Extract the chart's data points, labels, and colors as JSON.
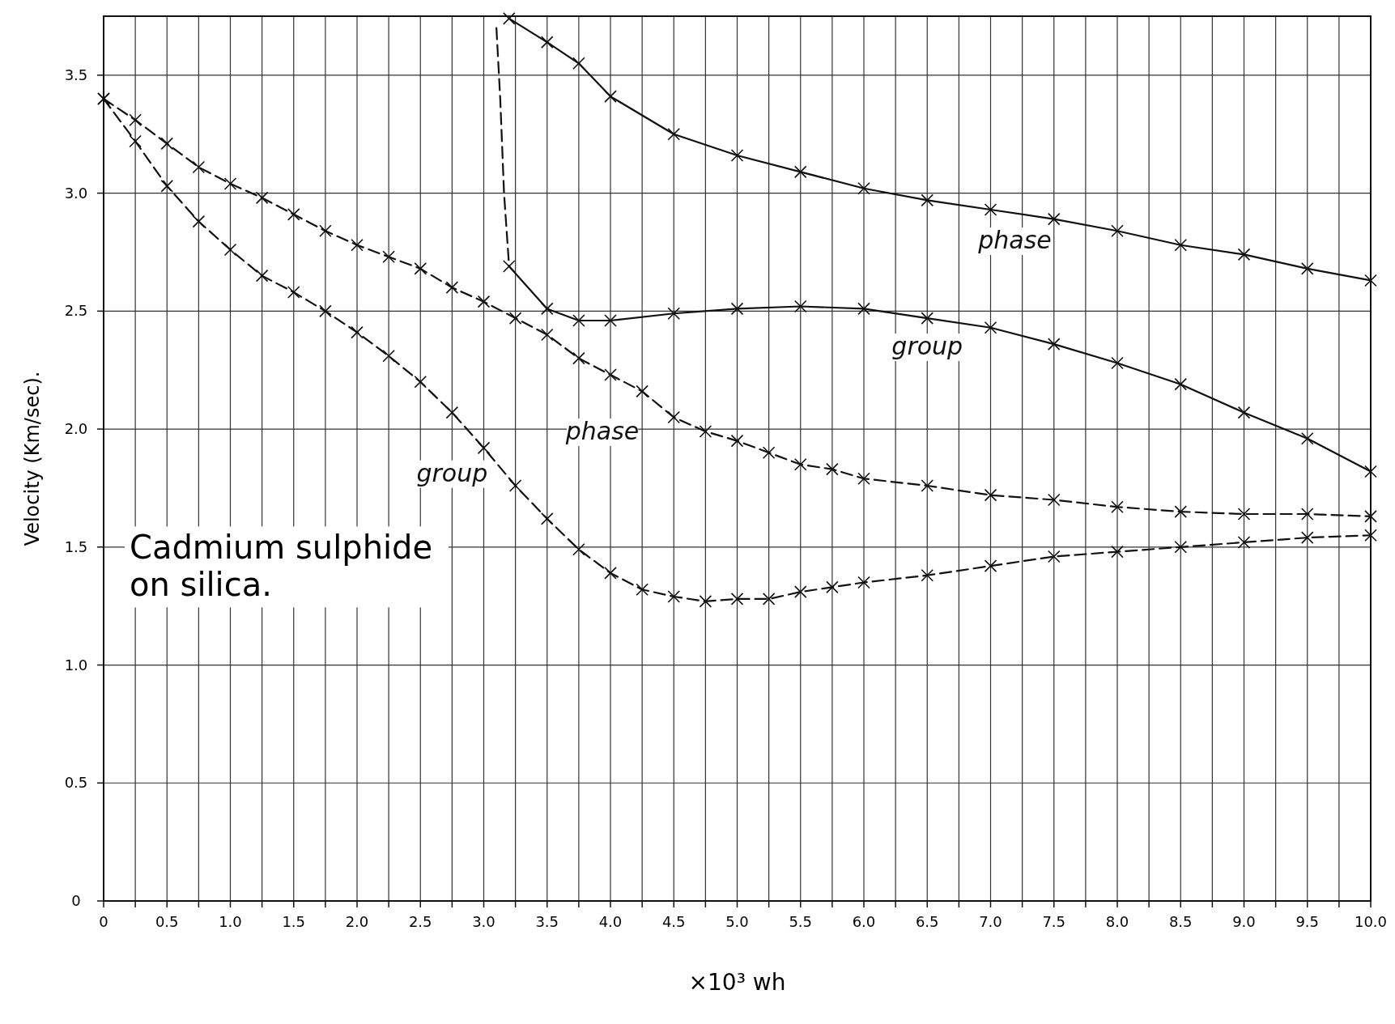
{
  "chart_data": {
    "type": "line",
    "xlabel": "×10³ wh",
    "ylabel": "Velocity (Km/sec).",
    "xlim": [
      0,
      10
    ],
    "ylim": [
      0,
      3.75
    ],
    "xticks": [
      0,
      {
        "value": 0.25,
        "label": null
      },
      0.5,
      {
        "value": 0.75,
        "label": null
      },
      {
        "value": 1,
        "label": "1.0"
      },
      {
        "value": 1.25,
        "label": null
      },
      1.5,
      {
        "value": 1.75,
        "label": null
      },
      {
        "value": 2,
        "label": "2.0"
      },
      {
        "value": 2.25,
        "label": null
      },
      2.5,
      {
        "value": 2.75,
        "label": null
      },
      {
        "value": 3,
        "label": "3.0"
      },
      {
        "value": 3.25,
        "label": null
      },
      3.5,
      {
        "value": 3.75,
        "label": null
      },
      {
        "value": 4,
        "label": "4.0"
      },
      {
        "value": 4.25,
        "label": null
      },
      4.5,
      {
        "value": 4.75,
        "label": null
      },
      {
        "value": 5,
        "label": "5.0"
      },
      {
        "value": 5.25,
        "label": null
      },
      5.5,
      {
        "value": 5.75,
        "label": null
      },
      {
        "value": 6,
        "label": "6.0"
      },
      {
        "value": 6.25,
        "label": null
      },
      6.5,
      {
        "value": 6.75,
        "label": null
      },
      {
        "value": 7,
        "label": "7.0"
      },
      {
        "value": 7.25,
        "label": null
      },
      7.5,
      {
        "value": 7.75,
        "label": null
      },
      {
        "value": 8,
        "label": "8.0"
      },
      {
        "value": 8.25,
        "label": null
      },
      8.5,
      {
        "value": 8.75,
        "label": null
      },
      {
        "value": 9,
        "label": "9.0"
      },
      {
        "value": 9.25,
        "label": null
      },
      9.5,
      {
        "value": 9.75,
        "label": null
      },
      {
        "value": 10,
        "label": "10.0"
      }
    ],
    "yticks": [
      0,
      0.5,
      {
        "value": 1,
        "label": "1.0"
      },
      1.5,
      {
        "value": 2,
        "label": "2.0"
      },
      2.5,
      {
        "value": 3,
        "label": "3.0"
      },
      3.5
    ],
    "grid": true,
    "marker": "cross",
    "series": [
      {
        "name": "phase",
        "color": "#111111",
        "line_style": "solid",
        "x": [
          3.2,
          3.5,
          3.75,
          4,
          4.5,
          5,
          5.5,
          6,
          6.5,
          7,
          7.5,
          8,
          8.5,
          9,
          9.5,
          10
        ],
        "values": [
          3.74,
          3.64,
          3.55,
          3.41,
          3.25,
          3.16,
          3.09,
          3.02,
          2.97,
          2.93,
          2.89,
          2.84,
          2.78,
          2.74,
          2.68,
          2.63
        ]
      },
      {
        "color": "#111111",
        "line_style": "dashed",
        "marker": "none",
        "x": [
          3.1,
          3.13,
          3.16,
          3.2
        ],
        "values": [
          3.7,
          3.4,
          3.0,
          2.69
        ]
      },
      {
        "name": "group",
        "color": "#111111",
        "line_style": "solid",
        "x": [
          3.2,
          3.5,
          3.75,
          4,
          4.5,
          5,
          5.5,
          6,
          6.5,
          7,
          7.5,
          8,
          8.5,
          9,
          9.5,
          10
        ],
        "values": [
          2.69,
          2.51,
          2.46,
          2.46,
          2.49,
          2.51,
          2.52,
          2.51,
          2.47,
          2.43,
          2.36,
          2.28,
          2.19,
          2.07,
          1.96,
          1.82
        ]
      },
      {
        "name": "phase",
        "color": "#111111",
        "line_style": "dashed",
        "x": [
          0,
          0.25,
          0.5,
          0.75,
          1,
          1.25,
          1.5,
          1.75,
          2,
          2.25,
          2.5,
          2.75,
          3,
          3.25,
          3.5,
          3.75,
          4,
          4.25,
          4.5,
          4.75,
          5,
          5.25,
          5.5,
          5.75,
          6,
          6.5,
          7,
          7.5,
          8,
          8.5,
          9,
          9.5,
          10
        ],
        "values": [
          3.4,
          3.31,
          3.21,
          3.11,
          3.04,
          2.98,
          2.91,
          2.84,
          2.78,
          2.73,
          2.68,
          2.6,
          2.54,
          2.47,
          2.4,
          2.3,
          2.23,
          2.16,
          2.05,
          1.99,
          1.95,
          1.9,
          1.85,
          1.83,
          1.79,
          1.76,
          1.72,
          1.7,
          1.67,
          1.65,
          1.64,
          1.64,
          1.63
        ]
      },
      {
        "name": "group",
        "color": "#111111",
        "line_style": "dashed",
        "x": [
          0,
          0.25,
          0.5,
          0.75,
          1,
          1.25,
          1.5,
          1.75,
          2,
          2.25,
          2.5,
          2.75,
          3,
          3.25,
          3.5,
          3.75,
          4,
          4.25,
          4.5,
          4.75,
          5,
          5.25,
          5.5,
          5.75,
          6,
          6.5,
          7,
          7.5,
          8,
          8.5,
          9,
          9.5,
          10
        ],
        "values": [
          3.4,
          3.22,
          3.03,
          2.88,
          2.76,
          2.65,
          2.58,
          2.5,
          2.41,
          2.31,
          2.2,
          2.07,
          1.92,
          1.76,
          1.62,
          1.49,
          1.39,
          1.32,
          1.29,
          1.27,
          1.28,
          1.28,
          1.31,
          1.33,
          1.35,
          1.38,
          1.42,
          1.46,
          1.48,
          1.5,
          1.52,
          1.54,
          1.55
        ]
      }
    ],
    "annotations": [
      "Cadmium sulphide on silica."
    ]
  }
}
